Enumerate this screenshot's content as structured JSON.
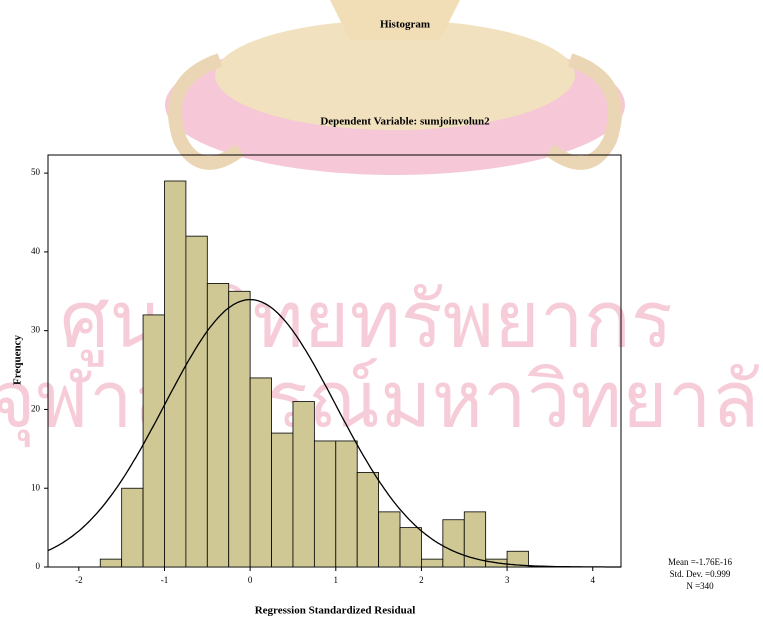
{
  "chart_data": {
    "type": "histogram",
    "title": "Histogram",
    "subtitle": "Dependent Variable: sumjoinvolun2",
    "x_label": "Regression Standardized Residual",
    "y_label": "Frequency",
    "bins": [
      -1.75,
      -1.5,
      -1.25,
      -1,
      -0.75,
      -0.5,
      -0.25,
      0,
      0.25,
      0.5,
      0.75,
      1,
      1.25,
      1.5,
      1.75,
      2,
      2.25,
      2.5,
      2.75,
      3,
      3.25
    ],
    "counts": [
      1,
      10,
      32,
      49,
      42,
      36,
      35,
      24,
      17,
      21,
      16,
      16,
      12,
      7,
      5,
      1,
      6,
      7,
      1,
      2
    ],
    "color": "#cfc794",
    "xlim": [
      -2.36,
      4.33
    ],
    "ylim": [
      0,
      52.3
    ],
    "xticks": [
      -2,
      -1,
      0,
      1,
      2,
      3,
      4
    ],
    "yticks": [
      0,
      10,
      20,
      30,
      40,
      50
    ],
    "normal_curve": true,
    "stats": [
      {
        "label": "Mean =",
        "value": -1.76e-16,
        "value_label": "-1.76E-16"
      },
      {
        "label": "Std. Dev. =",
        "value": 0.999,
        "value_label": "0.999"
      },
      {
        "label": "N =",
        "value": 340,
        "value_label": "340"
      }
    ]
  },
  "watermark": {
    "line1": "ศูนย์วิทยทรัพยากร",
    "line2": "จุฬาลงกรณ์มหาวิทยาลัย"
  }
}
